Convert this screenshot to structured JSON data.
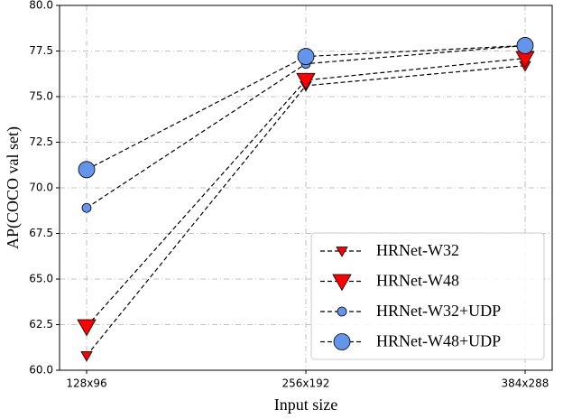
{
  "chart_data": {
    "type": "line",
    "x_label": "Input size",
    "y_label": "AP(COCO val set)",
    "categories": [
      "128x96",
      "256x192",
      "384x288"
    ],
    "ylim": [
      60,
      80
    ],
    "yticks": [
      {
        "value": 60,
        "label": "60.0"
      },
      62.5,
      {
        "value": 65,
        "label": "65.0"
      },
      67.5,
      {
        "value": 70,
        "label": "70.0"
      },
      72.5,
      {
        "value": 75,
        "label": "75.0"
      },
      77.5,
      {
        "value": 80,
        "label": "80.0"
      }
    ],
    "grid": true,
    "legend": "lower right",
    "series": [
      {
        "name": "HRNet-W32",
        "color": "#ff0000",
        "marker": "triangle",
        "marker_size": 6,
        "values": [
          60.8,
          75.6,
          76.7
        ]
      },
      {
        "name": "HRNet-W48",
        "color": "#ff0000",
        "marker": "triangle",
        "marker_size": 10,
        "values": [
          62.4,
          75.9,
          77.1
        ]
      },
      {
        "name": "HRNet-W32+UDP",
        "color": "#6495ed",
        "marker": "circle",
        "marker_size": 5,
        "values": [
          68.9,
          76.8,
          77.8
        ]
      },
      {
        "name": "HRNet-W48+UDP",
        "color": "#6495ed",
        "marker": "circle",
        "marker_size": 9,
        "values": [
          71.0,
          77.2,
          77.8
        ]
      }
    ]
  }
}
